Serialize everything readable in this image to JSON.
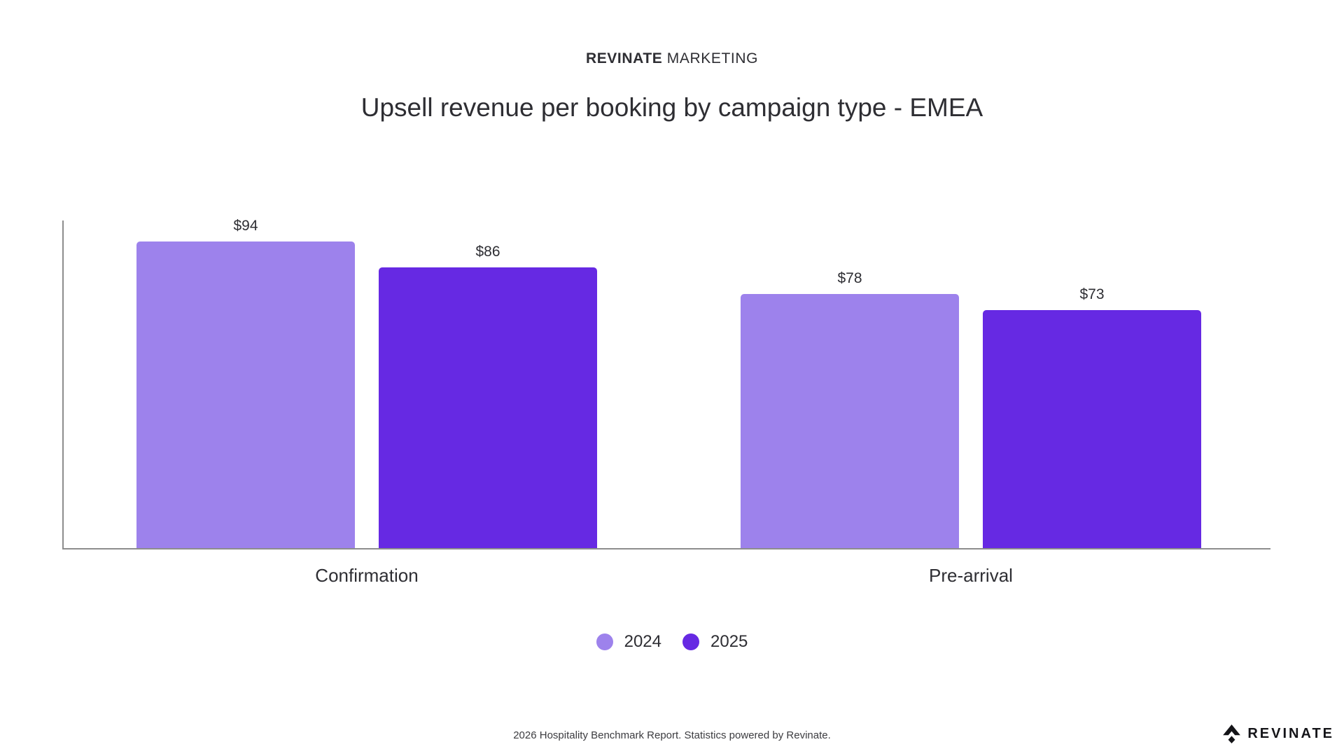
{
  "header": {
    "brand_bold": "REVINATE",
    "brand_regular": "MARKETING"
  },
  "title": "Upsell revenue per booking by campaign type - EMEA",
  "chart_data": {
    "type": "bar",
    "categories": [
      "Confirmation",
      "Pre-arrival"
    ],
    "series": [
      {
        "name": "2024",
        "color": "#9d82ec",
        "values": [
          94,
          78
        ]
      },
      {
        "name": "2025",
        "color": "#6629e3",
        "values": [
          86,
          73
        ]
      }
    ],
    "data_labels": [
      [
        "$94",
        "$78"
      ],
      [
        "$86",
        "$73"
      ]
    ],
    "value_prefix": "$",
    "xlabel": "",
    "ylabel": "",
    "ylim": [
      0,
      100
    ],
    "grid": false,
    "y_ticks_visible": false,
    "legend_position": "bottom",
    "axis_color": "#8d8d8d"
  },
  "footer": {
    "caption": "2026 Hospitality Benchmark Report. Statistics powered by Revinate."
  },
  "logo": {
    "text": "REVINATE",
    "icon": "revinate-chevron-diamond-icon"
  }
}
